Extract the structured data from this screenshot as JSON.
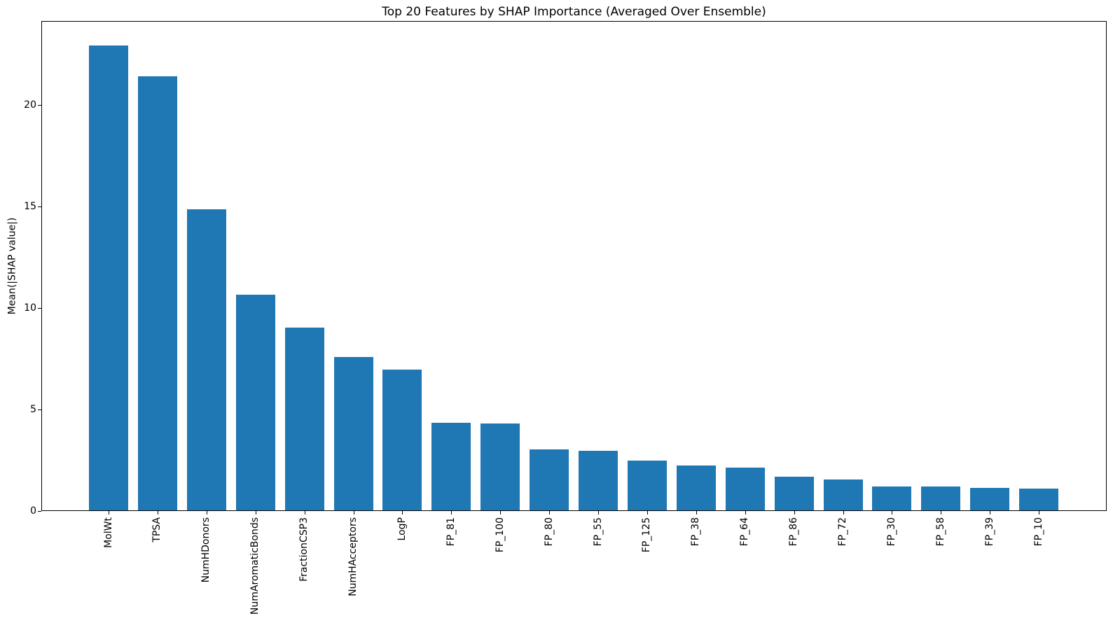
{
  "chart_data": {
    "type": "bar",
    "title": "Top 20 Features by SHAP Importance (Averaged Over Ensemble)",
    "xlabel": "",
    "ylabel": "Mean(|SHAP value|)",
    "categories": [
      "MolWt",
      "TPSA",
      "NumHDonors",
      "NumAromaticBonds",
      "FractionCSP3",
      "NumHAcceptors",
      "LogP",
      "FP_81",
      "FP_100",
      "FP_80",
      "FP_55",
      "FP_125",
      "FP_38",
      "FP_64",
      "FP_86",
      "FP_72",
      "FP_30",
      "FP_58",
      "FP_39",
      "FP_10"
    ],
    "values": [
      22.95,
      21.4,
      14.85,
      10.65,
      9.05,
      7.6,
      6.95,
      4.35,
      4.3,
      3.05,
      2.95,
      2.5,
      2.25,
      2.15,
      1.7,
      1.55,
      1.2,
      1.2,
      1.15,
      1.1
    ],
    "yticks": [
      0,
      5,
      10,
      15,
      20
    ],
    "ylim": [
      0,
      24.14
    ],
    "bar_color": "#1f77b4",
    "spine_color": "#000000",
    "grid": false,
    "legend": null,
    "x_tick_label_rotation": 90
  }
}
